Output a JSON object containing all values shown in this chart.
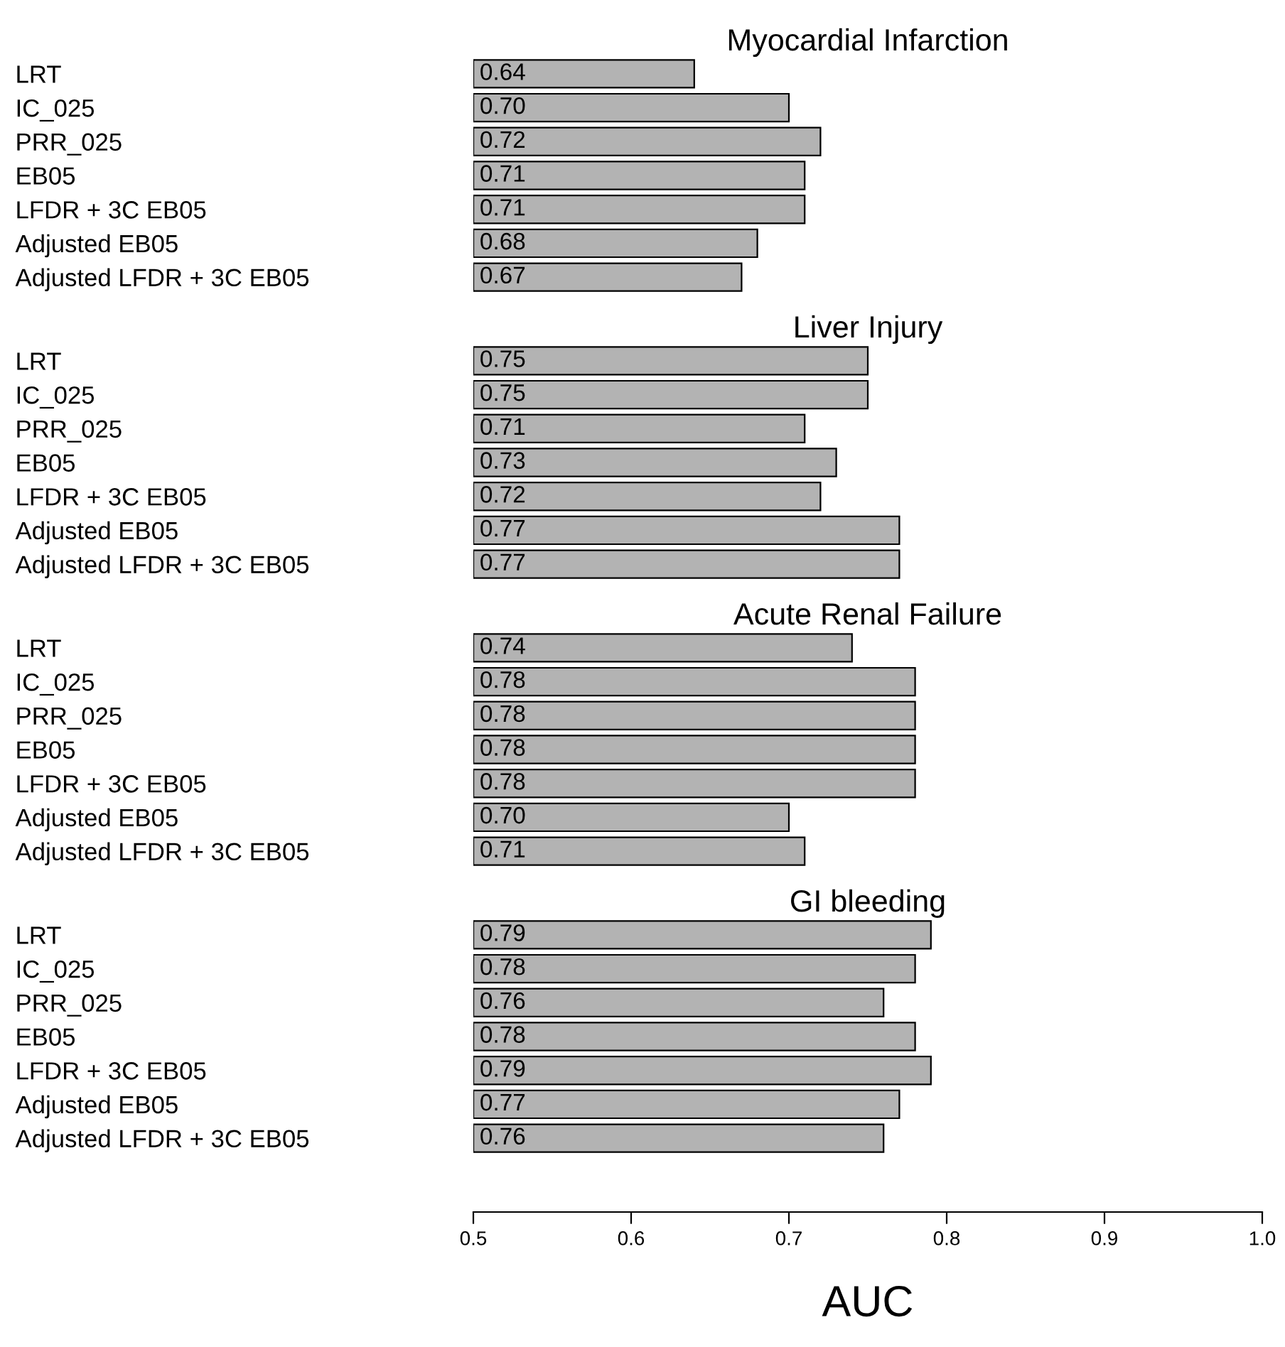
{
  "chart_data": [
    {
      "type": "bar",
      "orientation": "horizontal",
      "title": "Myocardial Infarction",
      "categories": [
        "LRT",
        "IC_025",
        "PRR_025",
        "EB05",
        "LFDR + 3C EB05",
        "Adjusted EB05",
        "Adjusted LFDR + 3C EB05"
      ],
      "values": [
        0.64,
        0.7,
        0.72,
        0.71,
        0.71,
        0.68,
        0.67
      ],
      "value_labels": [
        "0.64",
        "0.70",
        "0.72",
        "0.71",
        "0.71",
        "0.68",
        "0.67"
      ],
      "color": "#b3b3b3",
      "xlim": [
        0.5,
        1.0
      ],
      "xticks": [
        0.5,
        0.6,
        0.7,
        0.8,
        0.9,
        1.0
      ],
      "tick_labels": "y",
      "grid": false,
      "legend": false
    },
    {
      "type": "bar",
      "orientation": "horizontal",
      "title": "Liver Injury",
      "categories": [
        "LRT",
        "IC_025",
        "PRR_025",
        "EB05",
        "LFDR + 3C EB05",
        "Adjusted EB05",
        "Adjusted LFDR + 3C EB05"
      ],
      "values": [
        0.75,
        0.75,
        0.71,
        0.73,
        0.72,
        0.77,
        0.77
      ],
      "value_labels": [
        "0.75",
        "0.75",
        "0.71",
        "0.73",
        "0.72",
        "0.77",
        "0.77"
      ],
      "color": "#b3b3b3",
      "xlim": [
        0.5,
        1.0
      ],
      "xticks": [
        0.5,
        0.6,
        0.7,
        0.8,
        0.9,
        1.0
      ],
      "tick_labels": "y",
      "grid": false,
      "legend": false
    },
    {
      "type": "bar",
      "orientation": "horizontal",
      "title": "Acute Renal Failure",
      "categories": [
        "LRT",
        "IC_025",
        "PRR_025",
        "EB05",
        "LFDR + 3C EB05",
        "Adjusted EB05",
        "Adjusted LFDR + 3C EB05"
      ],
      "values": [
        0.74,
        0.78,
        0.78,
        0.78,
        0.78,
        0.7,
        0.71
      ],
      "value_labels": [
        "0.74",
        "0.78",
        "0.78",
        "0.78",
        "0.78",
        "0.70",
        "0.71"
      ],
      "color": "#b3b3b3",
      "xlim": [
        0.5,
        1.0
      ],
      "xticks": [
        0.5,
        0.6,
        0.7,
        0.8,
        0.9,
        1.0
      ],
      "tick_labels": "y",
      "grid": false,
      "legend": false
    },
    {
      "type": "bar",
      "orientation": "horizontal",
      "title": "GI bleeding",
      "xlabel": "AUC",
      "categories": [
        "LRT",
        "IC_025",
        "PRR_025",
        "EB05",
        "LFDR + 3C EB05",
        "Adjusted EB05",
        "Adjusted LFDR + 3C EB05"
      ],
      "values": [
        0.79,
        0.78,
        0.76,
        0.78,
        0.79,
        0.77,
        0.76
      ],
      "value_labels": [
        "0.79",
        "0.78",
        "0.76",
        "0.78",
        "0.79",
        "0.77",
        "0.76"
      ],
      "color": "#b3b3b3",
      "xlim": [
        0.5,
        1.0
      ],
      "xticks": [
        0.5,
        0.6,
        0.7,
        0.8,
        0.9,
        {
          "value": 1.0,
          "label": "1.0"
        }
      ],
      "grid": false,
      "legend": false
    }
  ]
}
